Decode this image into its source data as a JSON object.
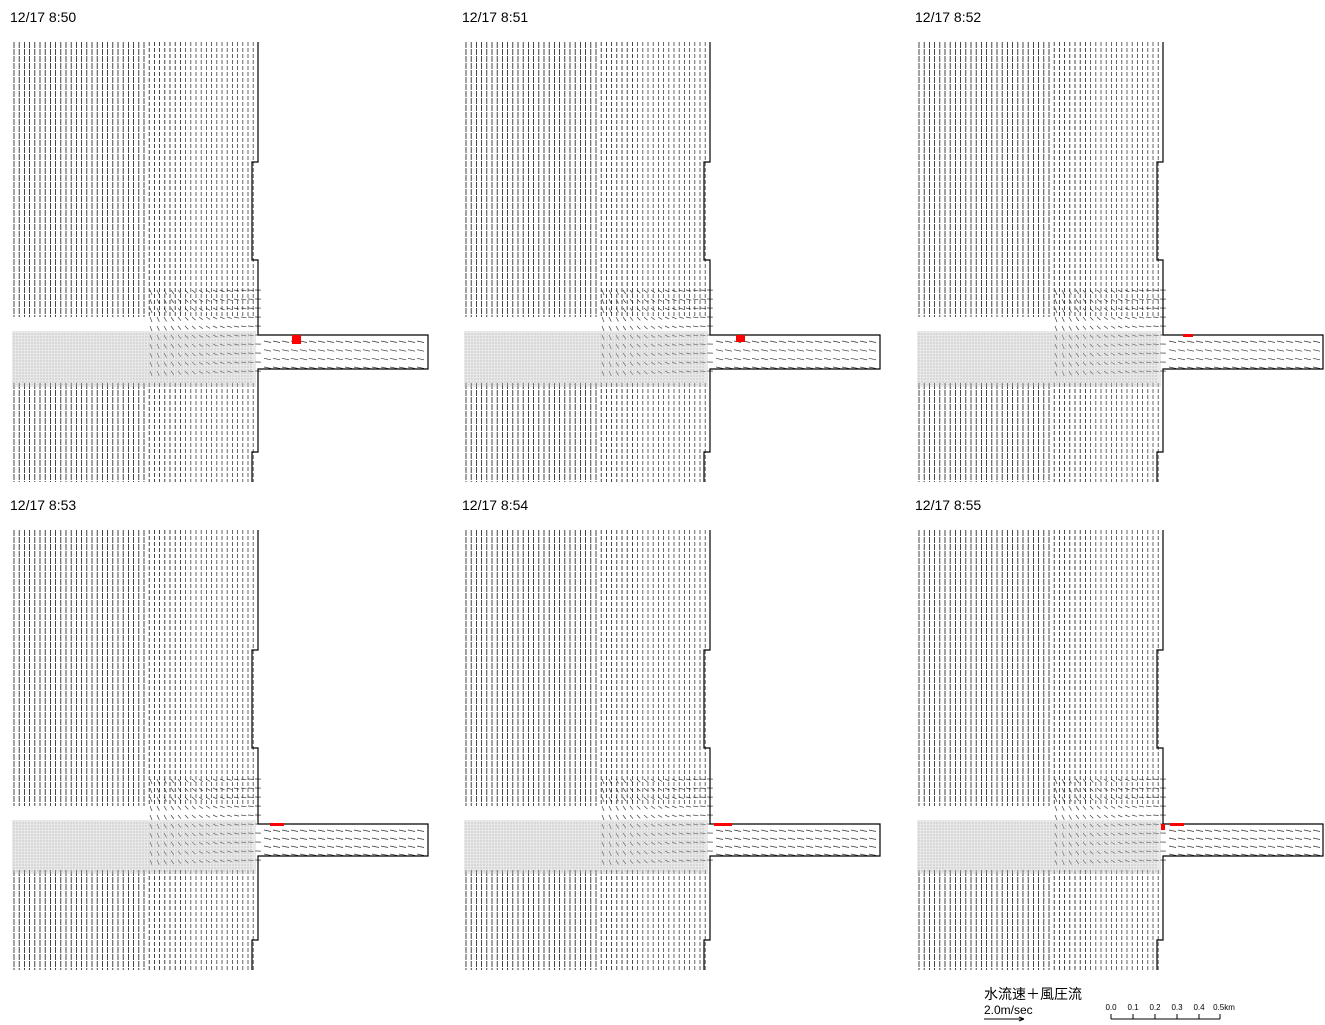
{
  "panels": [
    {
      "timestamp": "12/17  8:50"
    },
    {
      "timestamp": "12/17  8:51"
    },
    {
      "timestamp": "12/17  8:52"
    },
    {
      "timestamp": "12/17  8:53"
    },
    {
      "timestamp": "12/17  8:54"
    },
    {
      "timestamp": "12/17  8:55"
    }
  ],
  "legend": {
    "label": "水流速＋風圧流",
    "reference_speed": "2.0m/sec",
    "scale_ticks": [
      "0.0",
      "0.1",
      "0.2",
      "0.3",
      "0.4",
      "0.5km"
    ]
  },
  "colors": {
    "vector": "#000000",
    "particle": "#ff0000",
    "boundary": "#000000"
  }
}
